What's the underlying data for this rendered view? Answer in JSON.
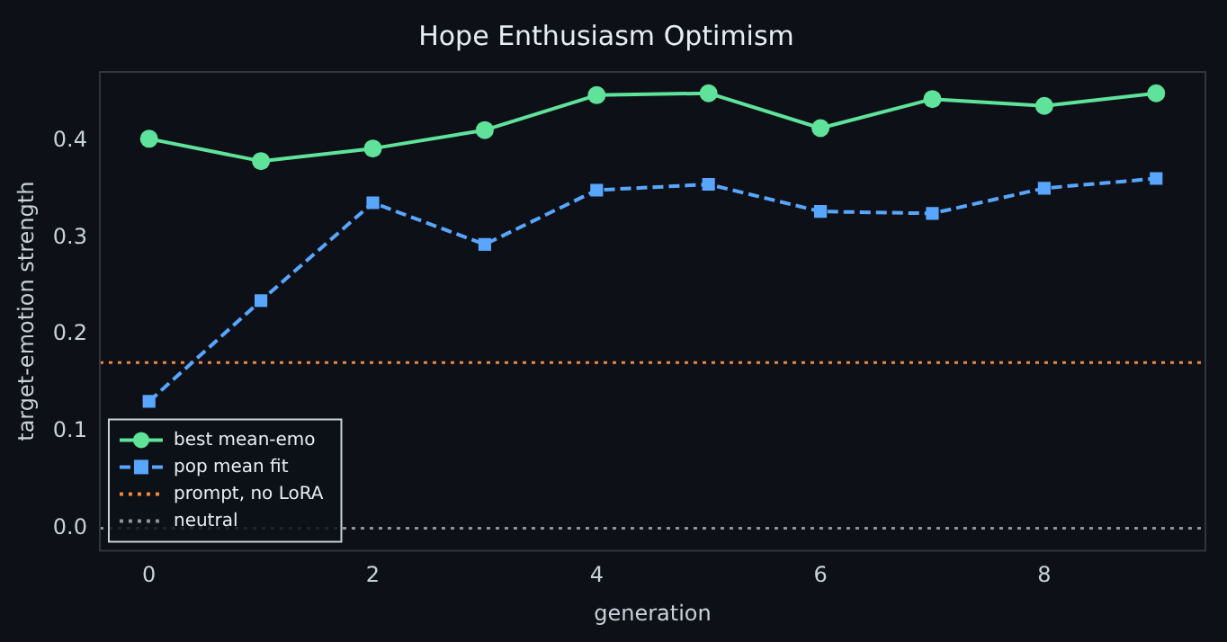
{
  "chart_data": {
    "type": "line",
    "title": "Hope Enthusiasm Optimism",
    "xlabel": "generation",
    "ylabel": "target-emotion strength",
    "x": [
      0,
      1,
      2,
      3,
      4,
      5,
      6,
      7,
      8,
      9
    ],
    "series": [
      {
        "name": "best mean-emo",
        "color": "#5fe39a",
        "marker": "circle",
        "line_style": "solid",
        "values": [
          0.402,
          0.379,
          0.392,
          0.411,
          0.447,
          0.449,
          0.413,
          0.443,
          0.436,
          0.449
        ]
      },
      {
        "name": "pop mean fit",
        "color": "#58a6ff",
        "marker": "square",
        "line_style": "dashed",
        "values": [
          0.131,
          0.235,
          0.336,
          0.293,
          0.349,
          0.355,
          0.327,
          0.325,
          0.351,
          0.361
        ]
      }
    ],
    "ref_lines": [
      {
        "axis": "y",
        "value": 0.171,
        "label": "prompt, no LoRA",
        "color": "#f0883e",
        "line_style": "dotted"
      },
      {
        "axis": "y",
        "value": 0,
        "label": "neutral",
        "color": "#8b949e",
        "line_style": "dotted"
      }
    ],
    "xlim": [
      -0.44,
      9.44
    ],
    "xticks": [
      0,
      2,
      4,
      6,
      8
    ],
    "ylim": [
      -0.023,
      0.471
    ],
    "yticks": [
      {
        "value": 0,
        "label": "0.0"
      },
      {
        "value": 0.1,
        "label": "0.1"
      },
      {
        "value": 0.2,
        "label": "0.2"
      },
      {
        "value": 0.3,
        "label": "0.3"
      },
      {
        "value": 0.4,
        "label": "0.4"
      }
    ],
    "grid": false,
    "legend": "bottom left"
  }
}
